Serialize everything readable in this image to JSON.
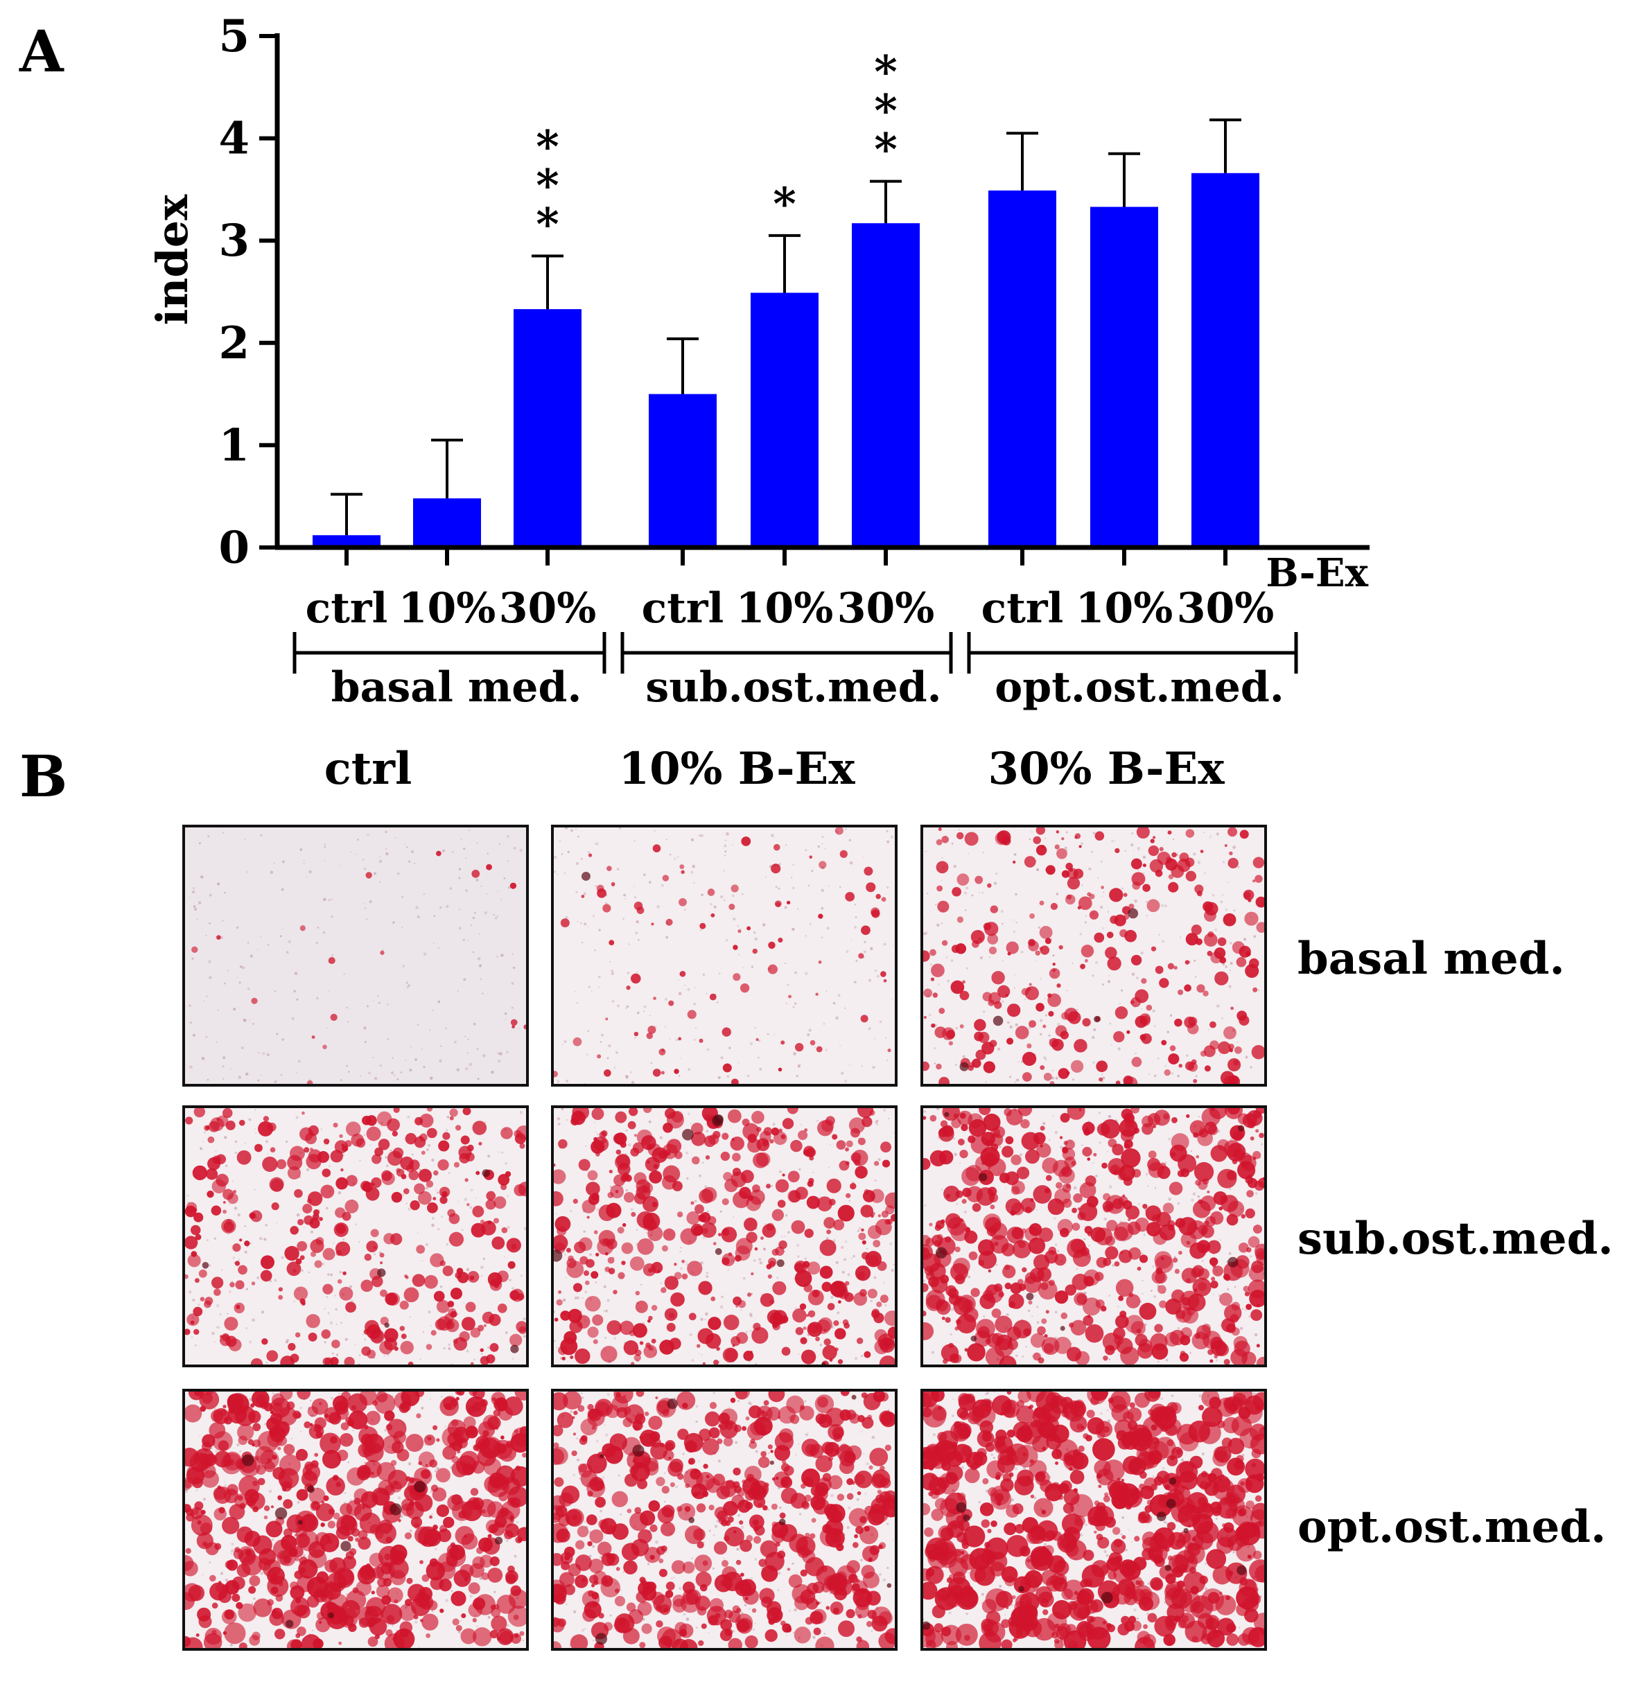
{
  "panel_a_label": "A",
  "panel_b_label": "B",
  "chart_data": {
    "type": "bar",
    "title": "",
    "ylabel": "index",
    "xlabel": "B-Ex",
    "ylim": [
      0,
      5
    ],
    "yticks": [
      "0",
      "1",
      "2",
      "3",
      "4",
      "5"
    ],
    "bar_color": "#0000ff",
    "groups": [
      {
        "label": "basal med.",
        "bars": [
          {
            "category": "ctrl",
            "value": 0.12,
            "error": 0.4,
            "significance": ""
          },
          {
            "category": "10%",
            "value": 0.48,
            "error": 0.57,
            "significance": ""
          },
          {
            "category": "30%",
            "value": 2.33,
            "error": 0.52,
            "significance": "* * *"
          }
        ]
      },
      {
        "label": "sub.ost.med.",
        "bars": [
          {
            "category": "ctrl",
            "value": 1.5,
            "error": 0.54,
            "significance": ""
          },
          {
            "category": "10%",
            "value": 2.49,
            "error": 0.56,
            "significance": "*"
          },
          {
            "category": "30%",
            "value": 3.17,
            "error": 0.41,
            "significance": "* * *"
          }
        ]
      },
      {
        "label": "opt.ost.med.",
        "bars": [
          {
            "category": "ctrl",
            "value": 3.49,
            "error": 0.56,
            "significance": ""
          },
          {
            "category": "10%",
            "value": 3.33,
            "error": 0.52,
            "significance": ""
          },
          {
            "category": "30%",
            "value": 3.66,
            "error": 0.52,
            "significance": ""
          }
        ]
      }
    ]
  },
  "panel_b": {
    "columns": [
      "ctrl",
      "10% B-Ex",
      "30% B-Ex"
    ],
    "rows": [
      "basal med.",
      "sub.ost.med.",
      "opt.ost.med."
    ],
    "stain_color": "#d0142c",
    "stain_density": [
      [
        0.02,
        0.1,
        0.32
      ],
      [
        0.38,
        0.48,
        0.6
      ],
      [
        0.72,
        0.62,
        0.8
      ]
    ]
  }
}
